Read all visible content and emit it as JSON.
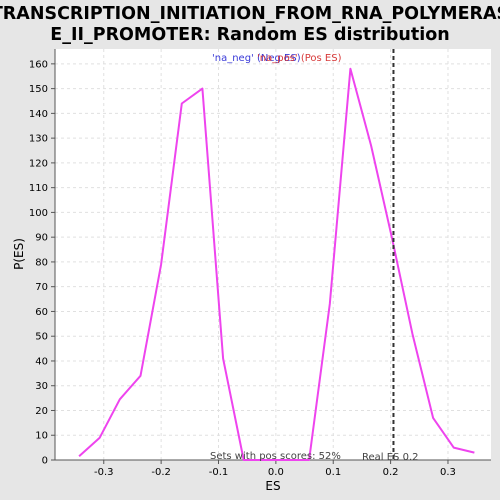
{
  "chart_data": {
    "type": "line",
    "title": "TRANSCRIPTION_INITIATION_FROM_RNA_POLYMERAS E_II_PROMOTER: Random ES distribution",
    "title_lines": [
      "TRANSCRIPTION_INITIATION_FROM_RNA_POLYMERAS",
      "E_II_PROMOTER: Random ES distribution"
    ],
    "xlabel": "ES",
    "ylabel": "P(ES)",
    "xlim": [
      -0.385,
      0.375
    ],
    "ylim": [
      0,
      166
    ],
    "x_ticks": [
      -0.3,
      -0.2,
      -0.1,
      0.0,
      0.1,
      0.2,
      0.3
    ],
    "x_tick_labels": [
      "-0.3",
      "-0.2",
      "-0.1",
      "0.0",
      "0.1",
      "0.2",
      "0.3"
    ],
    "y_ticks": [
      0,
      10,
      20,
      30,
      40,
      50,
      60,
      70,
      80,
      90,
      100,
      110,
      120,
      130,
      140,
      150,
      160
    ],
    "y_tick_labels": [
      "0",
      "10",
      "20",
      "30",
      "40",
      "50",
      "60",
      "70",
      "80",
      "90",
      "100",
      "110",
      "120",
      "130",
      "140",
      "150",
      "160"
    ],
    "grid": true,
    "series": [
      {
        "color": "#ee44ee",
        "x": [
          -0.343,
          -0.307,
          -0.272,
          -0.236,
          -0.2,
          -0.164,
          -0.128,
          -0.092,
          -0.056,
          -0.02,
          0.022,
          0.058,
          0.094,
          0.13,
          0.166,
          0.202,
          0.238,
          0.274,
          0.31,
          0.346
        ],
        "y": [
          1.5,
          9,
          24.5,
          34,
          79,
          144,
          150,
          41,
          0,
          0,
          0,
          0,
          63,
          158,
          127,
          90,
          51,
          17,
          5,
          3
        ]
      }
    ],
    "legend": {
      "position": "top",
      "neg_label": "'na_neg' (Neg ES)",
      "pos_label": "'na_pos' (Pos ES)"
    },
    "real_es": {
      "x": 0.205,
      "label": "Real ES 0.2"
    },
    "annotation": "Sets with pos scores: 52%"
  }
}
